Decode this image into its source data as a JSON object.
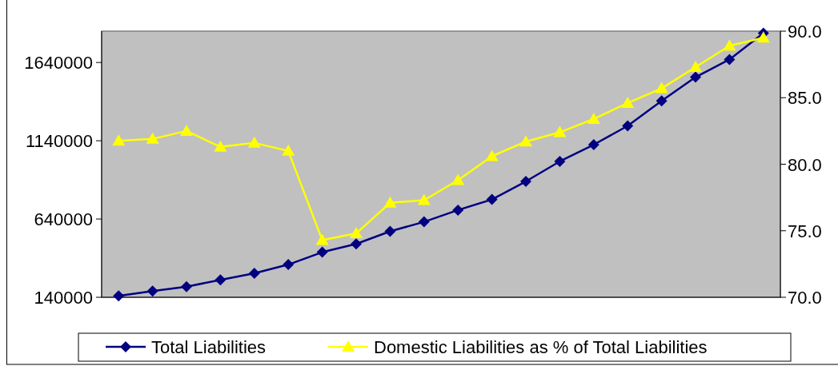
{
  "chart_data": {
    "type": "line",
    "categories": [
      null,
      null,
      null,
      null,
      null,
      null,
      null,
      null,
      null,
      null,
      null,
      null,
      null,
      null,
      null,
      null,
      null,
      null,
      null,
      null
    ],
    "series": [
      {
        "name": "Total Liabilities",
        "color": "#000080",
        "marker": "diamond",
        "values": [
          149000,
          179000,
          208000,
          251000,
          293000,
          349000,
          428000,
          481000,
          561000,
          622000,
          697000,
          765000,
          880000,
          1008000,
          1115000,
          1235000,
          1395000,
          1546000,
          1659000,
          1827000
        ]
      },
      {
        "name": "Domestic Liabilities as % of Total Liabilities",
        "color": "#ffff00",
        "marker": "triangle",
        "axis": "y2",
        "values": [
          81.75,
          81.9,
          82.5,
          81.3,
          81.6,
          81.0,
          74.3,
          74.8,
          77.1,
          77.3,
          78.8,
          80.6,
          81.7,
          82.4,
          83.4,
          84.6,
          85.7,
          87.3,
          88.9,
          89.5
        ]
      }
    ],
    "ylim": [
      140000,
      1840000
    ],
    "yticks": [
      140000,
      640000,
      1140000,
      1640000
    ],
    "y2lim": [
      70,
      90
    ],
    "y2ticks": [
      {
        "value": 70,
        "label": "70.0"
      },
      {
        "value": 75,
        "label": "75.0"
      },
      {
        "value": 80,
        "label": "80.0"
      },
      {
        "value": 85,
        "label": "85.0"
      },
      {
        "value": 90,
        "label": "90.0"
      }
    ],
    "legend": "bottom",
    "grid": false
  }
}
